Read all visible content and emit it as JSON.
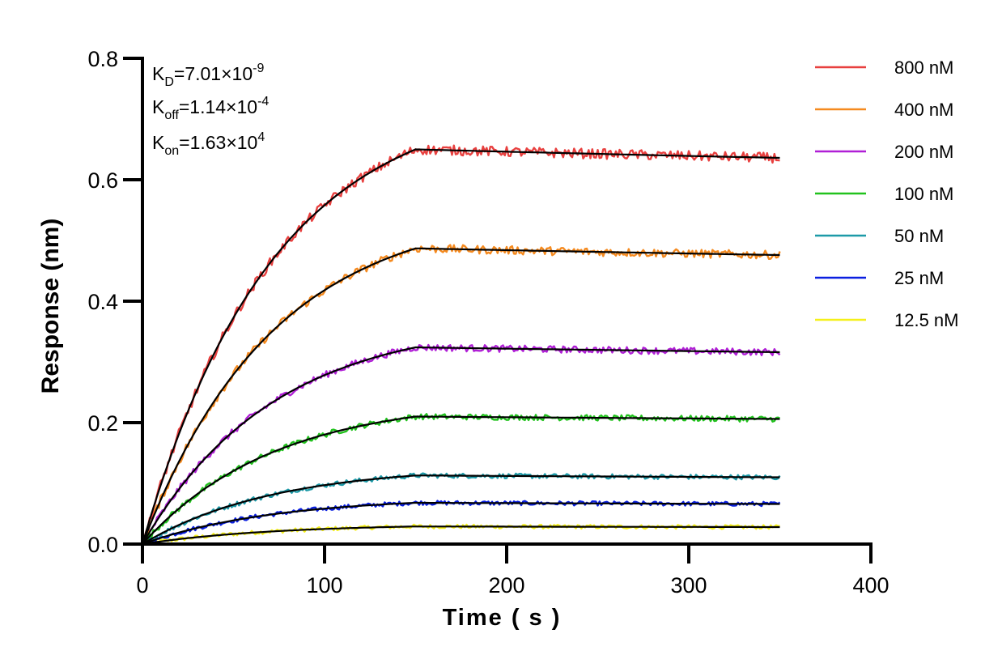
{
  "chart_data": {
    "type": "line",
    "title": "",
    "xlabel": "Time ( s )",
    "ylabel": "Response (nm)",
    "xlim": [
      0,
      400
    ],
    "ylim": [
      0,
      0.8
    ],
    "xticks": [
      "0",
      "100",
      "200",
      "300",
      "400"
    ],
    "yticks": [
      "0.0",
      "0.2",
      "0.4",
      "0.6",
      "0.8"
    ],
    "grid": false,
    "legend_position": "right",
    "association_end_s": 150,
    "dissociation_end_s": 350,
    "annotations": {
      "kd": {
        "sym": "K",
        "sub": "D",
        "val": "=7.01×10",
        "exp": "-9"
      },
      "koff": {
        "sym": "K",
        "sub": "off",
        "val": "=1.14×10",
        "exp": "-4"
      },
      "kon": {
        "sym": "K",
        "sub": "on",
        "val": "=1.63×10",
        "exp": "4"
      }
    },
    "fit_color": "#000000",
    "series": [
      {
        "name": "800 nM",
        "color": "#e8403f",
        "plateau": 0.65,
        "end": 0.636
      },
      {
        "name": "400 nM",
        "color": "#f58a1f",
        "plateau": 0.487,
        "end": 0.476
      },
      {
        "name": "200 nM",
        "color": "#b01fd6",
        "plateau": 0.324,
        "end": 0.316
      },
      {
        "name": "100 nM",
        "color": "#22c21e",
        "plateau": 0.21,
        "end": 0.206
      },
      {
        "name": "50 nM",
        "color": "#1d9aa8",
        "plateau": 0.113,
        "end": 0.11
      },
      {
        "name": "25 nM",
        "color": "#0a1fe0",
        "plateau": 0.068,
        "end": 0.066
      },
      {
        "name": "12.5 nM",
        "color": "#f5f01a",
        "plateau": 0.029,
        "end": 0.028
      }
    ]
  }
}
